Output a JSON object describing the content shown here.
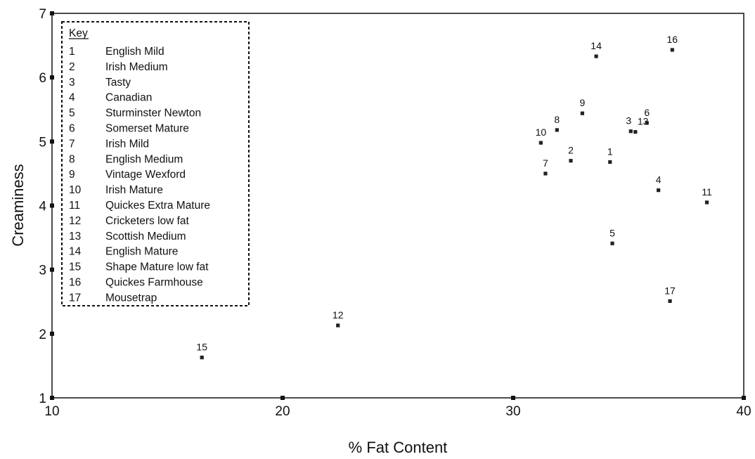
{
  "chart_data": {
    "type": "scatter",
    "title": "",
    "xlabel": "% Fat Content",
    "ylabel": "Creaminess",
    "xlim": [
      10,
      40
    ],
    "ylim": [
      1,
      7
    ],
    "xticks": [
      "10",
      "20",
      "30",
      "40"
    ],
    "yticks": [
      "1",
      "2",
      "3",
      "4",
      "5",
      "6",
      "7"
    ],
    "grid": false,
    "legend_placement": "top-left",
    "key": {
      "title": "Key",
      "entries": [
        {
          "id": "1",
          "name": "English Mild"
        },
        {
          "id": "2",
          "name": "Irish Medium"
        },
        {
          "id": "3",
          "name": "Tasty"
        },
        {
          "id": "4",
          "name": "Canadian"
        },
        {
          "id": "5",
          "name": "Sturminster Newton"
        },
        {
          "id": "6",
          "name": "Somerset Mature"
        },
        {
          "id": "7",
          "name": "Irish Mild"
        },
        {
          "id": "8",
          "name": "English Medium"
        },
        {
          "id": "9",
          "name": "Vintage Wexford"
        },
        {
          "id": "10",
          "name": "Irish Mature"
        },
        {
          "id": "11",
          "name": "Quickes Extra Mature"
        },
        {
          "id": "12",
          "name": "Cricketers low fat"
        },
        {
          "id": "13",
          "name": "Scottish Medium"
        },
        {
          "id": "14",
          "name": "English Mature"
        },
        {
          "id": "15",
          "name": "Shape Mature low fat"
        },
        {
          "id": "16",
          "name": "Quickes Farmhouse"
        },
        {
          "id": "17",
          "name": "Mousetrap"
        }
      ]
    },
    "points": [
      {
        "label": "1",
        "x": 34.2,
        "y": 4.68
      },
      {
        "label": "2",
        "x": 32.5,
        "y": 4.7
      },
      {
        "label": "3",
        "x": 35.1,
        "y": 5.16
      },
      {
        "label": "4",
        "x": 36.3,
        "y": 4.24
      },
      {
        "label": "5",
        "x": 34.3,
        "y": 3.41
      },
      {
        "label": "6",
        "x": 35.8,
        "y": 5.29
      },
      {
        "label": "7",
        "x": 31.4,
        "y": 4.5
      },
      {
        "label": "8",
        "x": 31.9,
        "y": 5.18
      },
      {
        "label": "9",
        "x": 33.0,
        "y": 5.44
      },
      {
        "label": "10",
        "x": 31.2,
        "y": 4.98
      },
      {
        "label": "11",
        "x": 38.4,
        "y": 4.05
      },
      {
        "label": "12",
        "x": 22.4,
        "y": 2.13
      },
      {
        "label": "13",
        "x": 35.3,
        "y": 5.15
      },
      {
        "label": "14",
        "x": 33.6,
        "y": 6.33
      },
      {
        "label": "15",
        "x": 16.5,
        "y": 1.63
      },
      {
        "label": "16",
        "x": 36.9,
        "y": 6.43
      },
      {
        "label": "17",
        "x": 36.8,
        "y": 2.51
      }
    ]
  }
}
